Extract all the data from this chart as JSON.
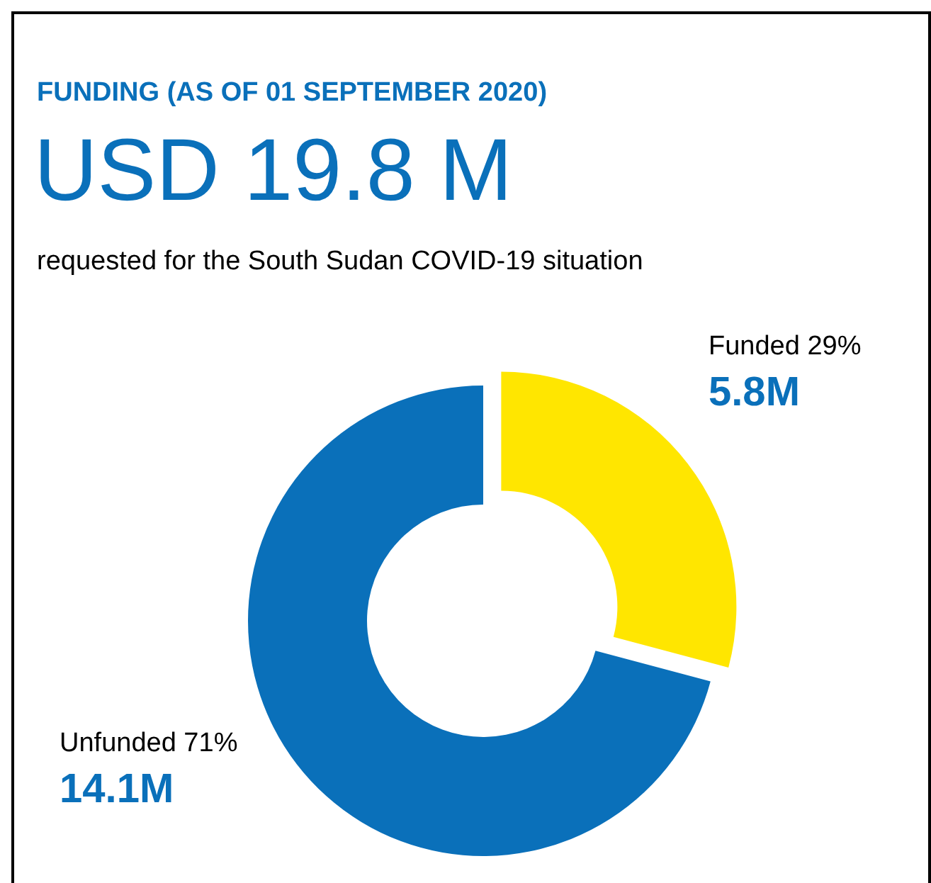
{
  "chart_data": {
    "type": "donut",
    "title": "FUNDING (AS OF 01 SEPTEMBER 2020)",
    "subtitle": "USD 19.8 M",
    "annotations": [
      "requested for the South Sudan COVID-19 situation"
    ],
    "categories": [
      "Funded 29%",
      "Unfunded 71%"
    ],
    "values": [
      5.8,
      14.1
    ],
    "value_labels": [
      "5.8M",
      "14.1M"
    ],
    "colors": [
      "#ffe600",
      "#0a70ba"
    ]
  }
}
